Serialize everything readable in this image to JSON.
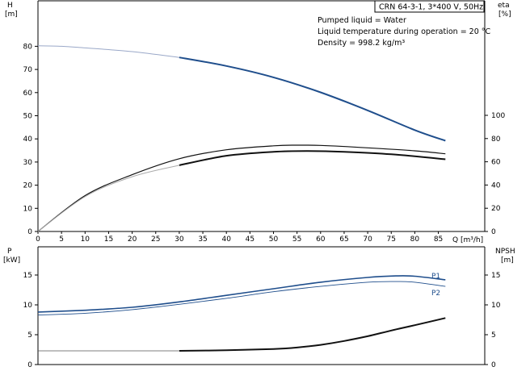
{
  "chart_data": [
    {
      "type": "line",
      "title_box": "CRN 64-3-1, 3*400 V, 50Hz",
      "annotations": [
        "Pumped liquid = Water",
        "Liquid temperature during operation = 20 °C",
        "Density = 998.2 kg/m³"
      ],
      "left_axis": {
        "label": "H",
        "unit": "[m]",
        "ylim": [
          0,
          90
        ],
        "ticks": [
          0,
          10,
          20,
          30,
          40,
          50,
          60,
          70,
          80
        ]
      },
      "right_axis": {
        "label": "eta",
        "unit": "[%]",
        "ylim": [
          0,
          90
        ],
        "ticks": [
          0,
          20,
          40,
          60,
          80,
          100
        ]
      },
      "x_axis": {
        "label": "Q [m³/h]",
        "xlim": [
          0,
          95
        ],
        "ticks": [
          0,
          5,
          10,
          15,
          20,
          25,
          30,
          35,
          40,
          45,
          50,
          55,
          60,
          65,
          70,
          75,
          80,
          85
        ]
      },
      "grid": false,
      "series": [
        {
          "axis": "left",
          "color": "#9aa8c8",
          "width": 1,
          "x": [
            0,
            5,
            10,
            20,
            30
          ],
          "y": [
            80.2,
            80.0,
            79.3,
            77.7,
            75.2
          ]
        },
        {
          "axis": "left",
          "color": "#1f4e8c",
          "width": 2,
          "x": [
            30,
            40,
            50,
            60,
            70,
            80,
            86.5
          ],
          "y": [
            75.2,
            71.5,
            66.6,
            60.1,
            52.3,
            43.8,
            39.2
          ]
        },
        {
          "axis": "right",
          "color": "#111111",
          "width": 1.2,
          "x": [
            0,
            10,
            20,
            30,
            40,
            50,
            55,
            60,
            70,
            80,
            86.5
          ],
          "y": [
            0,
            36,
            57,
            73,
            82,
            86,
            86.6,
            86.4,
            84,
            81,
            78
          ]
        },
        {
          "axis": "right",
          "color": "#aaaaaa",
          "width": 1,
          "x": [
            0,
            10,
            20,
            30
          ],
          "y": [
            0,
            35,
            55,
            66.5
          ]
        },
        {
          "axis": "right",
          "color": "#111111",
          "width": 2,
          "x": [
            30,
            40,
            50,
            57,
            65,
            75,
            86.5
          ],
          "y": [
            66.5,
            76,
            80,
            80.8,
            80,
            77.5,
            72.5
          ]
        }
      ]
    },
    {
      "type": "line",
      "left_axis": {
        "label": "P",
        "unit": "[kW]",
        "ylim": [
          0,
          19.5
        ],
        "ticks": [
          0,
          5,
          10,
          15
        ]
      },
      "right_axis": {
        "label": "NPSH",
        "unit": "[m]",
        "ylim": [
          0,
          19.5
        ],
        "ticks": [
          0,
          5,
          10,
          15
        ]
      },
      "grid": false,
      "series": [
        {
          "name": "P1",
          "axis": "left",
          "color": "#1f4e8c",
          "width": 1.6,
          "x": [
            0,
            10,
            20,
            30,
            40,
            50,
            60,
            70,
            76,
            80,
            86.5
          ],
          "y": [
            8.8,
            9.1,
            9.6,
            10.5,
            11.6,
            12.7,
            13.8,
            14.6,
            14.85,
            14.8,
            14.2
          ]
        },
        {
          "name": "P2",
          "axis": "left",
          "color": "#1f4e8c",
          "width": 0.9,
          "x": [
            0,
            10,
            20,
            30,
            40,
            50,
            60,
            70,
            76,
            80,
            86.5
          ],
          "y": [
            8.3,
            8.6,
            9.2,
            10.1,
            11.1,
            12.2,
            13.1,
            13.8,
            13.9,
            13.8,
            13.1
          ]
        },
        {
          "axis": "right",
          "color": "#111111",
          "width": 2,
          "x": [
            30,
            40,
            50,
            55,
            60,
            65,
            70,
            75,
            80,
            86.5
          ],
          "y": [
            2.3,
            2.4,
            2.6,
            2.85,
            3.3,
            3.95,
            4.75,
            5.7,
            6.6,
            7.8
          ]
        },
        {
          "axis": "right",
          "color": "#555555",
          "width": 0.8,
          "x": [
            0,
            30
          ],
          "y": [
            2.3,
            2.3
          ]
        }
      ]
    }
  ]
}
